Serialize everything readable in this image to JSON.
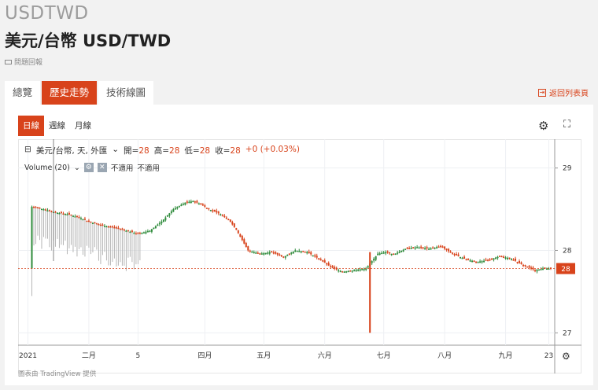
{
  "header": {
    "ticker": "USDTWD",
    "title": "美元/台幣 USD/TWD",
    "report_label": "問題回報"
  },
  "tabs": [
    {
      "label": "總覽",
      "active": false
    },
    {
      "label": "歷史走勢",
      "active": true
    },
    {
      "label": "技術線圖",
      "active": false
    }
  ],
  "back_link": "返回列表頁",
  "intervals": [
    {
      "label": "日線",
      "active": true
    },
    {
      "label": "週線",
      "active": false
    },
    {
      "label": "月線",
      "active": false
    }
  ],
  "legend": {
    "symbol": "美元/台幣, 天, 外匯",
    "open_label": "開=",
    "open": "28",
    "high_label": "高=",
    "high": "28",
    "low_label": "低=",
    "low": "28",
    "close_label": "收=",
    "close": "28",
    "change": "+0 (+0.03%)"
  },
  "volume": {
    "label": "Volume (20)",
    "na1": "不適用",
    "na2": "不適用"
  },
  "credit": "圖表由 TradingView 提供",
  "colors": {
    "accent": "#d8431b",
    "up": "#2e8b3b",
    "down": "#d8431b"
  },
  "chart_data": {
    "type": "candlestick",
    "y_ticks": [
      "29",
      "28",
      "27"
    ],
    "y_range": [
      26.85,
      29.35
    ],
    "last_price_label": "28",
    "last_price": 27.78,
    "x_labels": [
      "2021",
      "二月",
      "5",
      "四月",
      "五月",
      "六月",
      "七月",
      "八月",
      "九月",
      "23"
    ],
    "x_label_days": [
      0,
      31,
      56,
      90,
      120,
      151,
      181,
      212,
      243,
      265
    ],
    "x_range": [
      -5,
      268
    ],
    "series_closes": [
      [
        2,
        28.53
      ],
      [
        8,
        28.5
      ],
      [
        14,
        28.46
      ],
      [
        20,
        28.44
      ],
      [
        26,
        28.4
      ],
      [
        32,
        28.34
      ],
      [
        38,
        28.3
      ],
      [
        44,
        28.28
      ],
      [
        50,
        28.24
      ],
      [
        56,
        28.2
      ],
      [
        62,
        28.24
      ],
      [
        68,
        28.35
      ],
      [
        74,
        28.5
      ],
      [
        80,
        28.58
      ],
      [
        84,
        28.6
      ],
      [
        88,
        28.56
      ],
      [
        92,
        28.5
      ],
      [
        98,
        28.44
      ],
      [
        102,
        28.38
      ],
      [
        106,
        28.25
      ],
      [
        112,
        28.0
      ],
      [
        118,
        27.96
      ],
      [
        124,
        27.98
      ],
      [
        130,
        27.92
      ],
      [
        136,
        28.0
      ],
      [
        142,
        27.98
      ],
      [
        148,
        27.9
      ],
      [
        154,
        27.8
      ],
      [
        160,
        27.74
      ],
      [
        166,
        27.76
      ],
      [
        172,
        27.78
      ],
      [
        178,
        27.96
      ],
      [
        182,
        27.98
      ],
      [
        186,
        27.95
      ],
      [
        192,
        28.02
      ],
      [
        198,
        28.04
      ],
      [
        204,
        28.02
      ],
      [
        210,
        28.05
      ],
      [
        216,
        27.96
      ],
      [
        222,
        27.9
      ],
      [
        228,
        27.86
      ],
      [
        234,
        27.88
      ],
      [
        240,
        27.93
      ],
      [
        246,
        27.9
      ],
      [
        252,
        27.82
      ],
      [
        258,
        27.76
      ],
      [
        262,
        27.78
      ],
      [
        266,
        27.78
      ]
    ]
  }
}
